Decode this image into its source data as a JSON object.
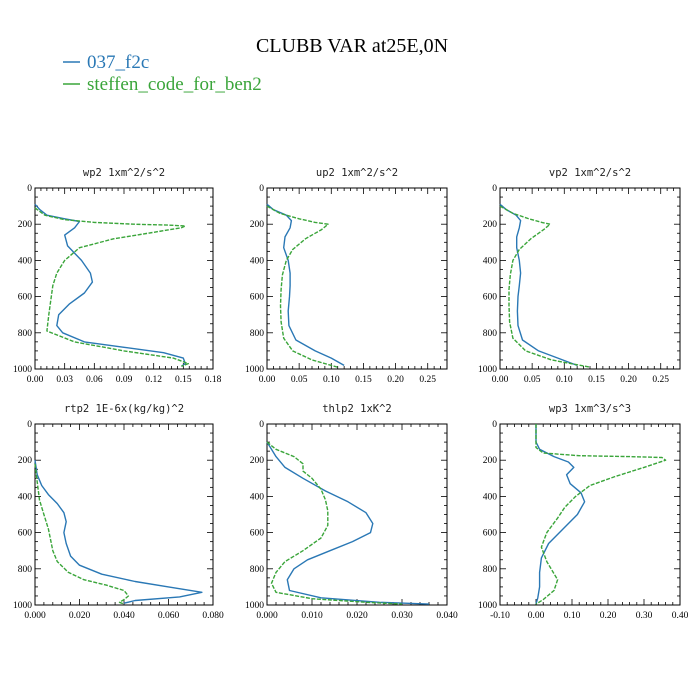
{
  "figure": {
    "title": "CLUBB VAR at25E,0N",
    "legend": [
      {
        "label": "037_f2c",
        "color": "#2a78b5"
      },
      {
        "label": "steffen_code_for_ben2",
        "color": "#3aa53a"
      }
    ]
  },
  "chart_data": [
    {
      "type": "line",
      "title": "wp2  1xm^2/s^2",
      "xlim": [
        0,
        0.18
      ],
      "ylim": [
        1000,
        0
      ],
      "xticks": [
        "0.00",
        "0.03",
        "0.06",
        "0.09",
        "0.12",
        "0.15",
        "0.18"
      ],
      "yticks": [
        "0",
        "200",
        "400",
        "600",
        "800",
        "1000"
      ],
      "series": [
        {
          "name": "037_f2c",
          "x": [
            0.0,
            0.005,
            0.012,
            0.03,
            0.045,
            0.04,
            0.03,
            0.033,
            0.047,
            0.056,
            0.058,
            0.05,
            0.035,
            0.024,
            0.022,
            0.028,
            0.05,
            0.09,
            0.13,
            0.15,
            0.152,
            0.148
          ],
          "y": [
            90,
            120,
            150,
            170,
            185,
            220,
            260,
            320,
            400,
            470,
            520,
            580,
            640,
            700,
            760,
            800,
            850,
            880,
            910,
            940,
            970,
            985
          ]
        },
        {
          "name": "steffen_code_for_ben2",
          "x": [
            0.0,
            0.01,
            0.03,
            0.06,
            0.1,
            0.135,
            0.152,
            0.148,
            0.12,
            0.08,
            0.045,
            0.03,
            0.022,
            0.018,
            0.016,
            0.014,
            0.012,
            0.04,
            0.09,
            0.14,
            0.155,
            0.148
          ],
          "y": [
            110,
            150,
            175,
            190,
            200,
            205,
            210,
            220,
            245,
            280,
            330,
            400,
            470,
            540,
            620,
            700,
            790,
            850,
            900,
            940,
            970,
            985
          ]
        }
      ]
    },
    {
      "type": "line",
      "title": "up2  1xm^2/s^2",
      "xlim": [
        0,
        0.28
      ],
      "ylim": [
        1000,
        0
      ],
      "xticks": [
        "0.00",
        "0.05",
        "0.10",
        "0.15",
        "0.20",
        "0.25"
      ],
      "yticks": [
        "0",
        "200",
        "400",
        "600",
        "800",
        "1000"
      ],
      "series": [
        {
          "name": "037_f2c",
          "x": [
            0.0,
            0.01,
            0.03,
            0.038,
            0.036,
            0.028,
            0.026,
            0.033,
            0.036,
            0.036,
            0.035,
            0.033,
            0.034,
            0.045,
            0.075,
            0.1,
            0.12
          ],
          "y": [
            90,
            120,
            150,
            180,
            220,
            270,
            330,
            400,
            470,
            540,
            600,
            680,
            760,
            840,
            900,
            940,
            980
          ]
        },
        {
          "name": "steffen_code_for_ben2",
          "x": [
            0.0,
            0.02,
            0.05,
            0.075,
            0.095,
            0.085,
            0.06,
            0.04,
            0.03,
            0.024,
            0.022,
            0.021,
            0.022,
            0.026,
            0.04,
            0.07,
            0.11
          ],
          "y": [
            100,
            140,
            170,
            190,
            200,
            230,
            280,
            340,
            400,
            480,
            560,
            650,
            740,
            830,
            900,
            950,
            990
          ]
        }
      ]
    },
    {
      "type": "line",
      "title": "vp2  1xm^2/s^2",
      "xlim": [
        0,
        0.28
      ],
      "ylim": [
        1000,
        0
      ],
      "xticks": [
        "0.00",
        "0.05",
        "0.10",
        "0.15",
        "0.20",
        "0.25"
      ],
      "yticks": [
        "0",
        "200",
        "400",
        "600",
        "800",
        "1000"
      ],
      "series": [
        {
          "name": "037_f2c",
          "x": [
            0.0,
            0.01,
            0.025,
            0.032,
            0.03,
            0.026,
            0.026,
            0.03,
            0.032,
            0.03,
            0.028,
            0.027,
            0.028,
            0.035,
            0.06,
            0.09,
            0.12
          ],
          "y": [
            90,
            120,
            150,
            180,
            220,
            270,
            330,
            400,
            470,
            540,
            600,
            680,
            760,
            840,
            900,
            940,
            980
          ]
        },
        {
          "name": "steffen_code_for_ben2",
          "x": [
            0.0,
            0.02,
            0.045,
            0.065,
            0.078,
            0.068,
            0.048,
            0.03,
            0.02,
            0.016,
            0.014,
            0.014,
            0.015,
            0.02,
            0.04,
            0.08,
            0.14
          ],
          "y": [
            100,
            140,
            170,
            190,
            200,
            230,
            280,
            340,
            400,
            480,
            560,
            650,
            740,
            830,
            900,
            950,
            990
          ]
        }
      ]
    },
    {
      "type": "line",
      "title": "rtp2  1E-6x(kg/kg)^2",
      "xlim": [
        0,
        0.08
      ],
      "ylim": [
        1000,
        0
      ],
      "xticks": [
        "0.000",
        "0.020",
        "0.040",
        "0.060",
        "0.080"
      ],
      "yticks": [
        "0",
        "200",
        "400",
        "600",
        "800",
        "1000"
      ],
      "series": [
        {
          "name": "037_f2c",
          "x": [
            0.0,
            0.001,
            0.003,
            0.006,
            0.01,
            0.013,
            0.014,
            0.013,
            0.014,
            0.016,
            0.02,
            0.03,
            0.045,
            0.06,
            0.075,
            0.065,
            0.045,
            0.04
          ],
          "y": [
            200,
            280,
            340,
            390,
            440,
            490,
            540,
            600,
            660,
            730,
            780,
            830,
            870,
            900,
            930,
            955,
            975,
            990
          ]
        },
        {
          "name": "steffen_code_for_ben2",
          "x": [
            0.0,
            0.001,
            0.002,
            0.004,
            0.006,
            0.007,
            0.008,
            0.01,
            0.015,
            0.022,
            0.032,
            0.04,
            0.042,
            0.04,
            0.038,
            0.04
          ],
          "y": [
            220,
            320,
            420,
            500,
            580,
            640,
            700,
            760,
            820,
            860,
            890,
            920,
            950,
            970,
            985,
            995
          ]
        }
      ]
    },
    {
      "type": "line",
      "title": "thlp2  1xK^2",
      "xlim": [
        0,
        0.04
      ],
      "ylim": [
        1000,
        0
      ],
      "xticks": [
        "0.000",
        "0.010",
        "0.020",
        "0.030",
        "0.040"
      ],
      "yticks": [
        "0",
        "200",
        "400",
        "600",
        "800",
        "1000"
      ],
      "series": [
        {
          "name": "037_f2c",
          "x": [
            0.0,
            0.001,
            0.002,
            0.004,
            0.008,
            0.013,
            0.018,
            0.022,
            0.0235,
            0.023,
            0.019,
            0.014,
            0.009,
            0.006,
            0.0045,
            0.005,
            0.012,
            0.025,
            0.036
          ],
          "y": [
            100,
            140,
            180,
            240,
            300,
            370,
            430,
            490,
            550,
            600,
            650,
            700,
            750,
            800,
            860,
            920,
            960,
            985,
            995
          ]
        },
        {
          "name": "steffen_code_for_ben2",
          "x": [
            0.0,
            0.002,
            0.006,
            0.008,
            0.008,
            0.01,
            0.012,
            0.013,
            0.0135,
            0.0135,
            0.012,
            0.008,
            0.004,
            0.002,
            0.001,
            0.002,
            0.01,
            0.022,
            0.03
          ],
          "y": [
            100,
            140,
            180,
            220,
            260,
            300,
            360,
            420,
            480,
            560,
            630,
            700,
            760,
            820,
            880,
            930,
            965,
            985,
            995
          ]
        }
      ]
    },
    {
      "type": "line",
      "title": "wp3  1xm^3/s^3",
      "xlim": [
        -0.1,
        0.4
      ],
      "ylim": [
        1000,
        0
      ],
      "xticks": [
        "-0.10",
        "0.00",
        "0.10",
        "0.20",
        "0.30",
        "0.40"
      ],
      "yticks": [
        "0",
        "200",
        "400",
        "600",
        "800",
        "1000"
      ],
      "series": [
        {
          "name": "037_f2c",
          "x": [
            0.0,
            0.0,
            0.01,
            0.05,
            0.09,
            0.105,
            0.085,
            0.095,
            0.125,
            0.135,
            0.115,
            0.075,
            0.035,
            0.015,
            0.01,
            0.01,
            0.005,
            0.0
          ],
          "y": [
            0,
            100,
            140,
            180,
            210,
            240,
            280,
            330,
            380,
            430,
            500,
            580,
            660,
            740,
            820,
            900,
            960,
            995
          ]
        },
        {
          "name": "steffen_code_for_ben2",
          "x": [
            0.0,
            0.0,
            0.02,
            0.12,
            0.26,
            0.35,
            0.36,
            0.3,
            0.22,
            0.15,
            0.11,
            0.08,
            0.06,
            0.03,
            0.015,
            0.03,
            0.06,
            0.05,
            0.02,
            0.0
          ],
          "y": [
            0,
            130,
            160,
            175,
            180,
            185,
            200,
            240,
            290,
            340,
            400,
            460,
            520,
            600,
            680,
            760,
            860,
            920,
            970,
            995
          ]
        }
      ]
    }
  ]
}
